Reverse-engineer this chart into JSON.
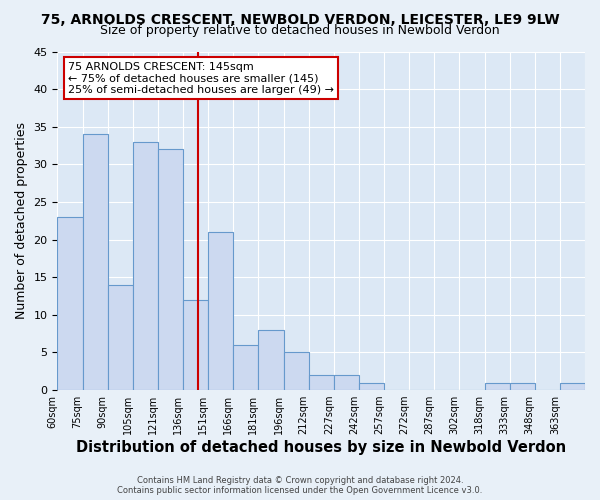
{
  "title": "75, ARNOLDS CRESCENT, NEWBOLD VERDON, LEICESTER, LE9 9LW",
  "subtitle": "Size of property relative to detached houses in Newbold Verdon",
  "xlabel": "Distribution of detached houses by size in Newbold Verdon",
  "ylabel": "Number of detached properties",
  "bar_counts": [
    23,
    34,
    14,
    33,
    32,
    12,
    21,
    6,
    8,
    5,
    2,
    2,
    1,
    0,
    0,
    0,
    0,
    1,
    1,
    0,
    1
  ],
  "bin_labels": [
    "60sqm",
    "75sqm",
    "90sqm",
    "105sqm",
    "121sqm",
    "136sqm",
    "151sqm",
    "166sqm",
    "181sqm",
    "196sqm",
    "212sqm",
    "227sqm",
    "242sqm",
    "257sqm",
    "272sqm",
    "287sqm",
    "302sqm",
    "318sqm",
    "333sqm",
    "348sqm",
    "363sqm"
  ],
  "bin_width": 15,
  "bar_color": "#ccd9f0",
  "bar_edge_color": "#6699cc",
  "vline_x": 4,
  "vline_color": "#cc0000",
  "annotation_title": "75 ARNOLDS CRESCENT: 145sqm",
  "annotation_line1": "← 75% of detached houses are smaller (145)",
  "annotation_line2": "25% of semi-detached houses are larger (49) →",
  "annotation_box_color": "#ffffff",
  "annotation_box_edgecolor": "#cc0000",
  "ylim": [
    0,
    45
  ],
  "yticks": [
    0,
    5,
    10,
    15,
    20,
    25,
    30,
    35,
    40,
    45
  ],
  "footer1": "Contains HM Land Registry data © Crown copyright and database right 2024.",
  "footer2": "Contains public sector information licensed under the Open Government Licence v3.0.",
  "bg_color": "#e8f0f8",
  "plot_bg_color": "#dce8f5",
  "grid_color": "#ffffff",
  "title_fontsize": 10,
  "subtitle_fontsize": 9,
  "ylabel_fontsize": 9,
  "xlabel_fontsize": 10.5
}
